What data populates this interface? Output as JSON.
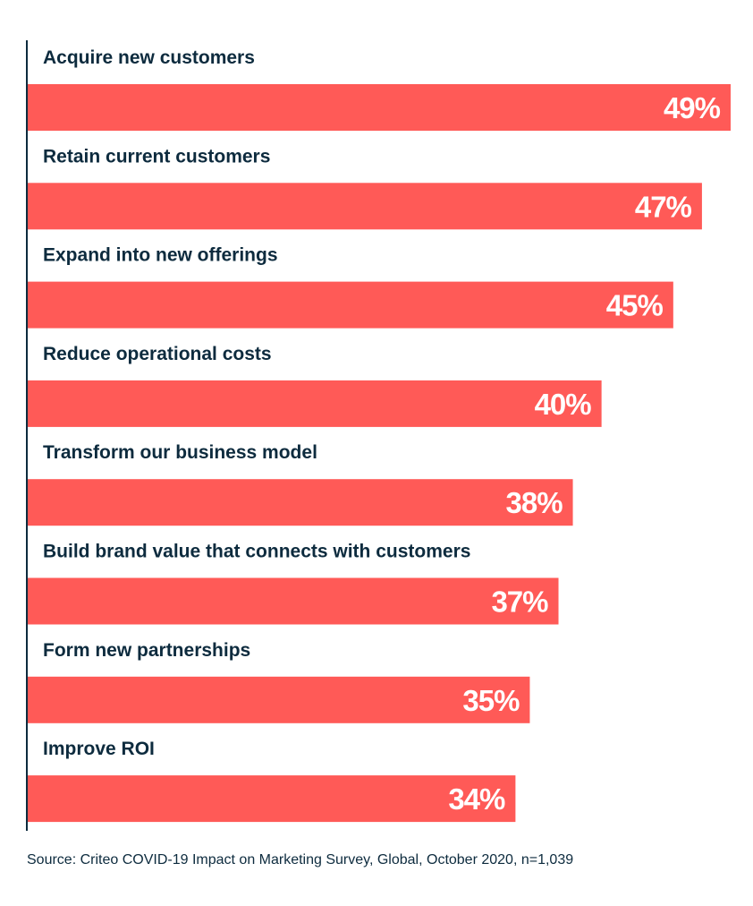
{
  "chart_data": {
    "type": "bar",
    "orientation": "horizontal",
    "categories": [
      "Acquire new customers",
      "Retain current customers",
      "Expand into new offerings",
      "Reduce operational costs",
      "Transform our business model",
      "Build brand value that connects with customers",
      "Form new partnerships",
      "Improve ROI"
    ],
    "values": [
      49,
      47,
      45,
      40,
      38,
      37,
      35,
      34
    ],
    "value_labels": [
      "49%",
      "47%",
      "45%",
      "40%",
      "38%",
      "37%",
      "35%",
      "34%"
    ],
    "unit": "%",
    "xlim": [
      0,
      49
    ],
    "grid": false,
    "legend": "none",
    "bar_color": "#ff5a57",
    "label_color": "#0d2b3e",
    "value_label_color": "#ffffff"
  },
  "source": "Source: Criteo COVID-19 Impact on Marketing Survey, Global, October 2020, n=1,039"
}
